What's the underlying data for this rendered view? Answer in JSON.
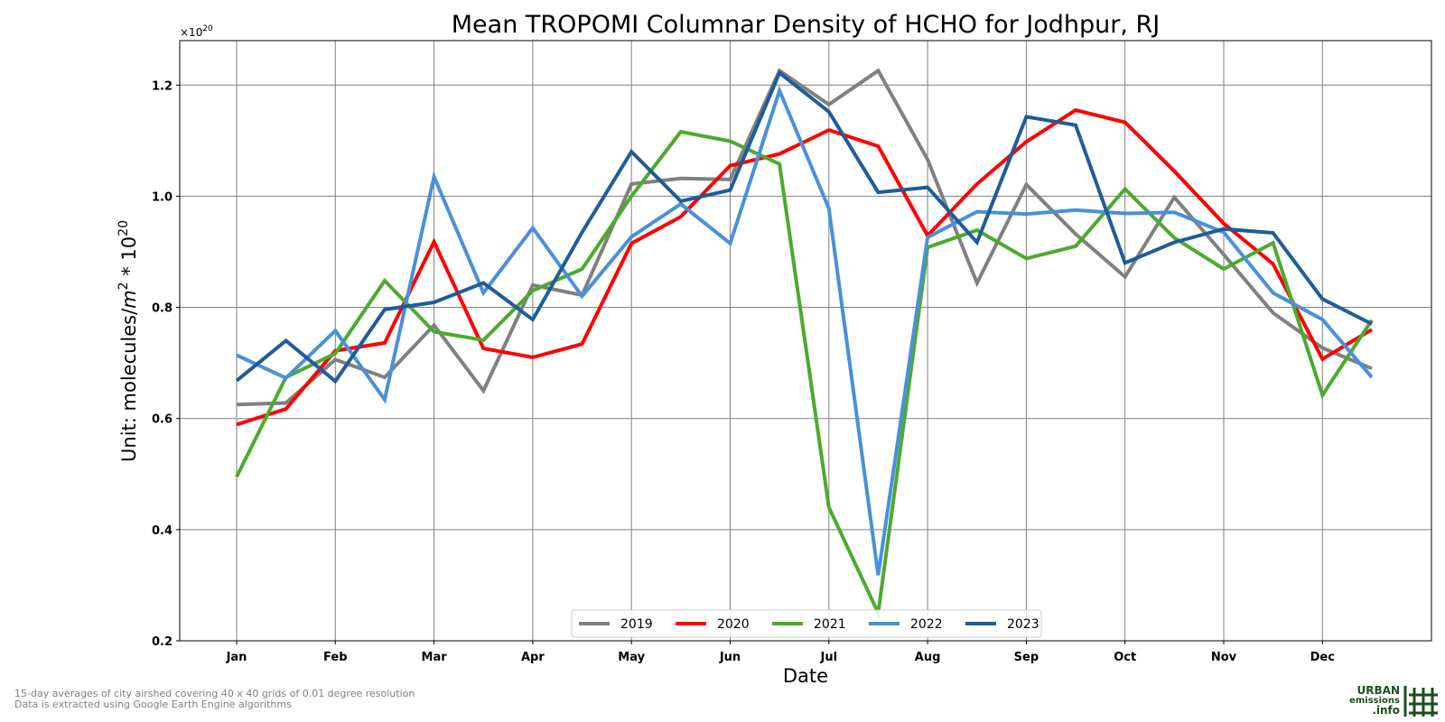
{
  "chart_data": {
    "type": "line",
    "title": "Mean TROPOMI Columnar Density of HCHO for Jodhpur, RJ",
    "xlabel": "Date",
    "ylabel_prefix": "Unit: molecules/",
    "ylabel_unit_base": "m",
    "ylabel_unit_exp": "2",
    "ylabel_mid": " * 10",
    "ylabel_exp": "20",
    "offset_text_base": "×10",
    "offset_text_exp": "20",
    "ylim": [
      0.2,
      1.28
    ],
    "yticks": [
      "0.2",
      "0.4",
      "0.6",
      "0.8",
      "1.0",
      "1.2"
    ],
    "x_tick_labels": [
      "Jan",
      "Feb",
      "Mar",
      "Apr",
      "May",
      "Jun",
      "Jul",
      "Aug",
      "Sep",
      "Oct",
      "Nov",
      "Dec"
    ],
    "grid": true,
    "legend_position": "lower center",
    "series": [
      {
        "name": "2019",
        "color": "#808080",
        "values": [
          0.625,
          0.628,
          0.706,
          0.674,
          0.768,
          0.65,
          0.84,
          0.822,
          1.022,
          1.032,
          1.03,
          1.226,
          1.165,
          1.226,
          1.066,
          0.844,
          1.021,
          0.932,
          0.855,
          0.998,
          0.895,
          0.79,
          0.727,
          0.69
        ]
      },
      {
        "name": "2020",
        "color": "#ff0000",
        "values": [
          0.589,
          0.617,
          0.722,
          0.736,
          0.918,
          0.726,
          0.71,
          0.734,
          0.915,
          0.963,
          1.055,
          1.076,
          1.119,
          1.09,
          0.929,
          1.022,
          1.098,
          1.155,
          1.133,
          1.045,
          0.951,
          0.878,
          0.707,
          0.76
        ]
      },
      {
        "name": "2021",
        "color": "#4caa2e",
        "values": [
          0.495,
          0.674,
          0.717,
          0.848,
          0.756,
          0.741,
          0.83,
          0.869,
          1.0,
          1.116,
          1.099,
          1.058,
          0.44,
          0.25,
          0.908,
          0.939,
          0.888,
          0.91,
          1.013,
          0.925,
          0.869,
          0.916,
          0.642,
          0.777
        ]
      },
      {
        "name": "2022",
        "color": "#4a90d9",
        "values": [
          0.714,
          0.673,
          0.758,
          0.634,
          1.035,
          0.826,
          0.943,
          0.82,
          0.927,
          0.986,
          0.915,
          1.19,
          0.978,
          0.318,
          0.926,
          0.972,
          0.968,
          0.975,
          0.969,
          0.971,
          0.935,
          0.826,
          0.778,
          0.674
        ]
      },
      {
        "name": "2023",
        "color": "#1f5c99",
        "values": [
          0.668,
          0.74,
          0.667,
          0.796,
          0.809,
          0.844,
          0.778,
          0.935,
          1.08,
          0.991,
          1.011,
          1.222,
          1.152,
          1.007,
          1.016,
          0.917,
          1.143,
          1.128,
          0.88,
          0.917,
          0.941,
          0.934,
          0.815,
          0.77
        ]
      }
    ]
  },
  "footer": {
    "note_line1": "15-day averages of city airshed covering 40 x 40 grids of 0.01 degree resolution",
    "note_line2": "Data is extracted using Google Earth Engine algorithms"
  },
  "logo": {
    "line1": "URBAN",
    "line2": "emissions",
    "line3": ".info",
    "color": "#1b4d1b"
  }
}
